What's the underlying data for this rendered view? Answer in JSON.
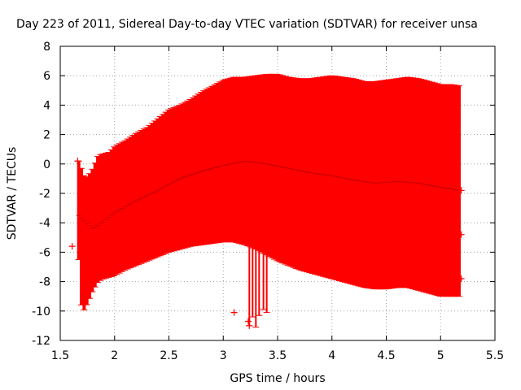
{
  "chart_data": {
    "type": "scatter",
    "title": "Day 223 of 2011, Sidereal Day-to-day VTEC variation (SDTVAR) for receiver unsa",
    "xlabel": "GPS time / hours",
    "ylabel": "SDTVAR / TECUs",
    "xlim": [
      1.5,
      5.5
    ],
    "ylim": [
      -12,
      8
    ],
    "x_ticks": [
      1.5,
      2,
      2.5,
      3,
      3.5,
      4,
      4.5,
      5,
      5.5
    ],
    "y_ticks": [
      -12,
      -10,
      -8,
      -6,
      -4,
      -2,
      0,
      2,
      4,
      6,
      8
    ],
    "x_tick_labels": [
      "1.5",
      "2",
      "2.5",
      "3",
      "3.5",
      "4",
      "4.5",
      "5",
      "5.5"
    ],
    "y_tick_labels": [
      "-12",
      "-10",
      "-8",
      "-6",
      "-4",
      "-2",
      "0",
      "2",
      "4",
      "6",
      "8"
    ],
    "grid": true,
    "series_color": "#ff0000",
    "upper_envelope": [
      [
        1.67,
        0.2
      ],
      [
        1.72,
        -0.8
      ],
      [
        1.75,
        -0.9
      ],
      [
        1.8,
        -0.3
      ],
      [
        1.85,
        0.6
      ],
      [
        1.95,
        0.8
      ],
      [
        2.0,
        1.2
      ],
      [
        2.1,
        1.6
      ],
      [
        2.2,
        2.1
      ],
      [
        2.3,
        2.5
      ],
      [
        2.4,
        3.1
      ],
      [
        2.5,
        3.7
      ],
      [
        2.6,
        4.0
      ],
      [
        2.7,
        4.4
      ],
      [
        2.8,
        4.9
      ],
      [
        2.9,
        5.3
      ],
      [
        3.0,
        5.7
      ],
      [
        3.1,
        5.9
      ],
      [
        3.2,
        5.9
      ],
      [
        3.3,
        6.0
      ],
      [
        3.4,
        6.1
      ],
      [
        3.5,
        6.1
      ],
      [
        3.6,
        5.9
      ],
      [
        3.7,
        5.8
      ],
      [
        3.8,
        5.8
      ],
      [
        3.9,
        5.9
      ],
      [
        4.0,
        6.0
      ],
      [
        4.1,
        5.9
      ],
      [
        4.2,
        5.8
      ],
      [
        4.3,
        5.6
      ],
      [
        4.4,
        5.6
      ],
      [
        4.5,
        5.7
      ],
      [
        4.6,
        5.8
      ],
      [
        4.7,
        5.9
      ],
      [
        4.8,
        5.8
      ],
      [
        4.9,
        5.6
      ],
      [
        5.0,
        5.4
      ],
      [
        5.1,
        5.4
      ],
      [
        5.18,
        5.3
      ]
    ],
    "lower_envelope": [
      [
        1.67,
        -6.5
      ],
      [
        1.7,
        -10.2
      ],
      [
        1.75,
        -9.5
      ],
      [
        1.8,
        -8.6
      ],
      [
        1.85,
        -8.0
      ],
      [
        1.9,
        -7.8
      ],
      [
        2.0,
        -7.6
      ],
      [
        2.1,
        -7.2
      ],
      [
        2.2,
        -6.9
      ],
      [
        2.3,
        -6.6
      ],
      [
        2.4,
        -6.3
      ],
      [
        2.5,
        -6.0
      ],
      [
        2.6,
        -5.8
      ],
      [
        2.7,
        -5.6
      ],
      [
        2.8,
        -5.5
      ],
      [
        2.9,
        -5.4
      ],
      [
        3.0,
        -5.3
      ],
      [
        3.1,
        -5.3
      ],
      [
        3.2,
        -5.5
      ],
      [
        3.3,
        -5.8
      ],
      [
        3.4,
        -6.2
      ],
      [
        3.5,
        -6.6
      ],
      [
        3.6,
        -6.9
      ],
      [
        3.7,
        -7.2
      ],
      [
        3.8,
        -7.4
      ],
      [
        3.9,
        -7.6
      ],
      [
        4.0,
        -7.8
      ],
      [
        4.1,
        -8.0
      ],
      [
        4.2,
        -8.2
      ],
      [
        4.3,
        -8.4
      ],
      [
        4.4,
        -8.5
      ],
      [
        4.5,
        -8.5
      ],
      [
        4.6,
        -8.4
      ],
      [
        4.7,
        -8.4
      ],
      [
        4.8,
        -8.6
      ],
      [
        4.9,
        -8.8
      ],
      [
        5.0,
        -9.0
      ],
      [
        5.1,
        -9.0
      ],
      [
        5.18,
        -9.0
      ]
    ],
    "center_line": [
      [
        1.67,
        -3.5
      ],
      [
        1.8,
        -4.4
      ],
      [
        1.9,
        -3.9
      ],
      [
        2.0,
        -3.3
      ],
      [
        2.2,
        -2.5
      ],
      [
        2.4,
        -1.8
      ],
      [
        2.6,
        -1.0
      ],
      [
        2.8,
        -0.5
      ],
      [
        3.0,
        -0.1
      ],
      [
        3.2,
        0.2
      ],
      [
        3.4,
        0.0
      ],
      [
        3.6,
        -0.3
      ],
      [
        3.8,
        -0.6
      ],
      [
        4.0,
        -0.8
      ],
      [
        4.2,
        -1.1
      ],
      [
        4.4,
        -1.3
      ],
      [
        4.6,
        -1.2
      ],
      [
        4.8,
        -1.3
      ],
      [
        5.0,
        -1.6
      ],
      [
        5.18,
        -1.8
      ]
    ],
    "sample_step_hours": 0.025,
    "outlier_bars": [
      {
        "x": 3.24,
        "low": -11.0,
        "high": -4.8
      },
      {
        "x": 3.27,
        "low": -10.4,
        "high": -5.2
      },
      {
        "x": 3.3,
        "low": -11.1,
        "high": -5.0
      },
      {
        "x": 3.33,
        "low": -10.3,
        "high": -5.4
      },
      {
        "x": 3.37,
        "low": -9.9,
        "high": -5.6
      },
      {
        "x": 3.4,
        "low": -10.1,
        "high": -5.8
      }
    ],
    "isolated_points": [
      {
        "x": 1.61,
        "y": -5.6
      },
      {
        "x": 1.66,
        "y": 0.2
      },
      {
        "x": 3.1,
        "y": -10.1
      },
      {
        "x": 3.23,
        "y": -10.7
      },
      {
        "x": 3.24,
        "y": -11.0
      },
      {
        "x": 5.19,
        "y": -1.8
      },
      {
        "x": 5.19,
        "y": -4.8
      },
      {
        "x": 5.19,
        "y": -7.8
      }
    ]
  }
}
